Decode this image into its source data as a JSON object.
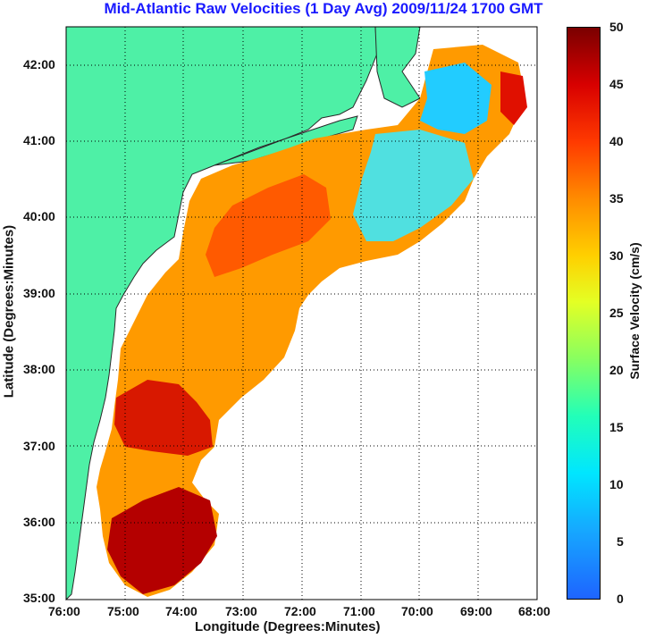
{
  "title": "Mid-Atlantic Raw Velocities (1 Day Avg) 2009/11/24 1700 GMT",
  "axes": {
    "xlabel": "Longitude (Degrees:Minutes)",
    "ylabel": "Latitude (Degrees:Minutes)",
    "x_ticks": [
      "76:00",
      "75:00",
      "74:00",
      "73:00",
      "72:00",
      "71:00",
      "70:00",
      "69:00",
      "68:00"
    ],
    "y_ticks": [
      "42:00",
      "41:00",
      "40:00",
      "39:00",
      "38:00",
      "37:00",
      "36:00",
      "35:00"
    ]
  },
  "colorbar": {
    "label": "Surface Velocity (cm/s)",
    "ticks": [
      "50",
      "45",
      "40",
      "35",
      "30",
      "25",
      "20",
      "15",
      "10",
      "5",
      "0"
    ]
  },
  "colors": {
    "land": "#4ef0a6",
    "title": "#1a1aff",
    "grid": "#000000"
  }
}
